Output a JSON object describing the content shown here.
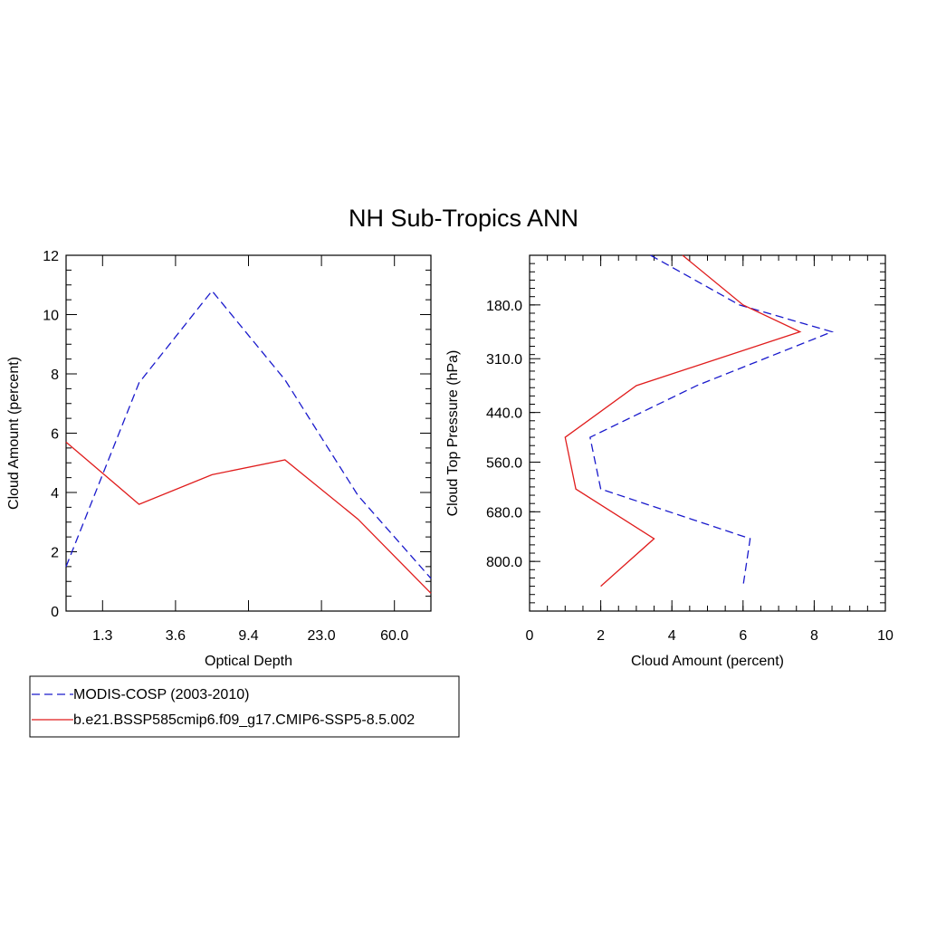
{
  "title": "NH Sub-Tropics ANN",
  "colors": {
    "obs": "#1a1acc",
    "model": "#e01c1c",
    "axis": "#000000"
  },
  "legend": [
    {
      "label": "MODIS-COSP (2003-2010)",
      "style": "dashed",
      "color": "#1a1acc"
    },
    {
      "label": "b.e21.BSSP585cmip6.f09_g17.CMIP6-SSP5-8.5.002",
      "style": "solid",
      "color": "#e01c1c"
    }
  ],
  "chart_data": [
    {
      "type": "line",
      "xlabel": "Optical Depth",
      "ylabel": "Cloud Amount (percent)",
      "xlim": [
        0,
        7
      ],
      "ylim": [
        0,
        12
      ],
      "x_ticks": [
        {
          "pos": 0.7,
          "label": "1.3"
        },
        {
          "pos": 2.1,
          "label": "3.6"
        },
        {
          "pos": 3.5,
          "label": "9.4"
        },
        {
          "pos": 4.9,
          "label": "23.0"
        },
        {
          "pos": 6.3,
          "label": "60.0"
        }
      ],
      "y_ticks": [
        0,
        2,
        4,
        6,
        8,
        10,
        12
      ],
      "x": [
        0,
        1.4,
        2.8,
        4.2,
        5.6,
        7.0
      ],
      "series": [
        {
          "name": "MODIS-COSP (2003-2010)",
          "values": [
            1.5,
            7.7,
            10.8,
            7.8,
            3.9,
            1.1
          ]
        },
        {
          "name": "b.e21.BSSP585cmip6.f09_g17.CMIP6-SSP5-8.5.002",
          "values": [
            5.7,
            3.6,
            4.6,
            5.1,
            3.1,
            0.6
          ]
        }
      ]
    },
    {
      "type": "line",
      "xlabel": "Cloud Amount (percent)",
      "ylabel": "Cloud Top Pressure (hPa)",
      "xlim": [
        0,
        10
      ],
      "ylim": [
        60,
        920
      ],
      "y_inverted": true,
      "x_ticks": [
        0,
        2,
        4,
        6,
        8,
        10
      ],
      "y_ticks": [
        {
          "pos": 180,
          "label": "180.0"
        },
        {
          "pos": 310,
          "label": "310.0"
        },
        {
          "pos": 440,
          "label": "440.0"
        },
        {
          "pos": 560,
          "label": "560.0"
        },
        {
          "pos": 680,
          "label": "680.0"
        },
        {
          "pos": 800,
          "label": "800.0"
        }
      ],
      "y": [
        60,
        180,
        245,
        375,
        500,
        625,
        745,
        860
      ],
      "series": [
        {
          "name": "MODIS-COSP (2003-2010)",
          "values": [
            3.4,
            5.9,
            8.5,
            4.7,
            1.7,
            2.0,
            6.2,
            6.0
          ]
        },
        {
          "name": "b.e21.BSSP585cmip6.f09_g17.CMIP6-SSP5-8.5.002",
          "values": [
            4.3,
            6.0,
            7.6,
            3.0,
            1.0,
            1.3,
            3.5,
            2.0
          ]
        }
      ]
    }
  ]
}
